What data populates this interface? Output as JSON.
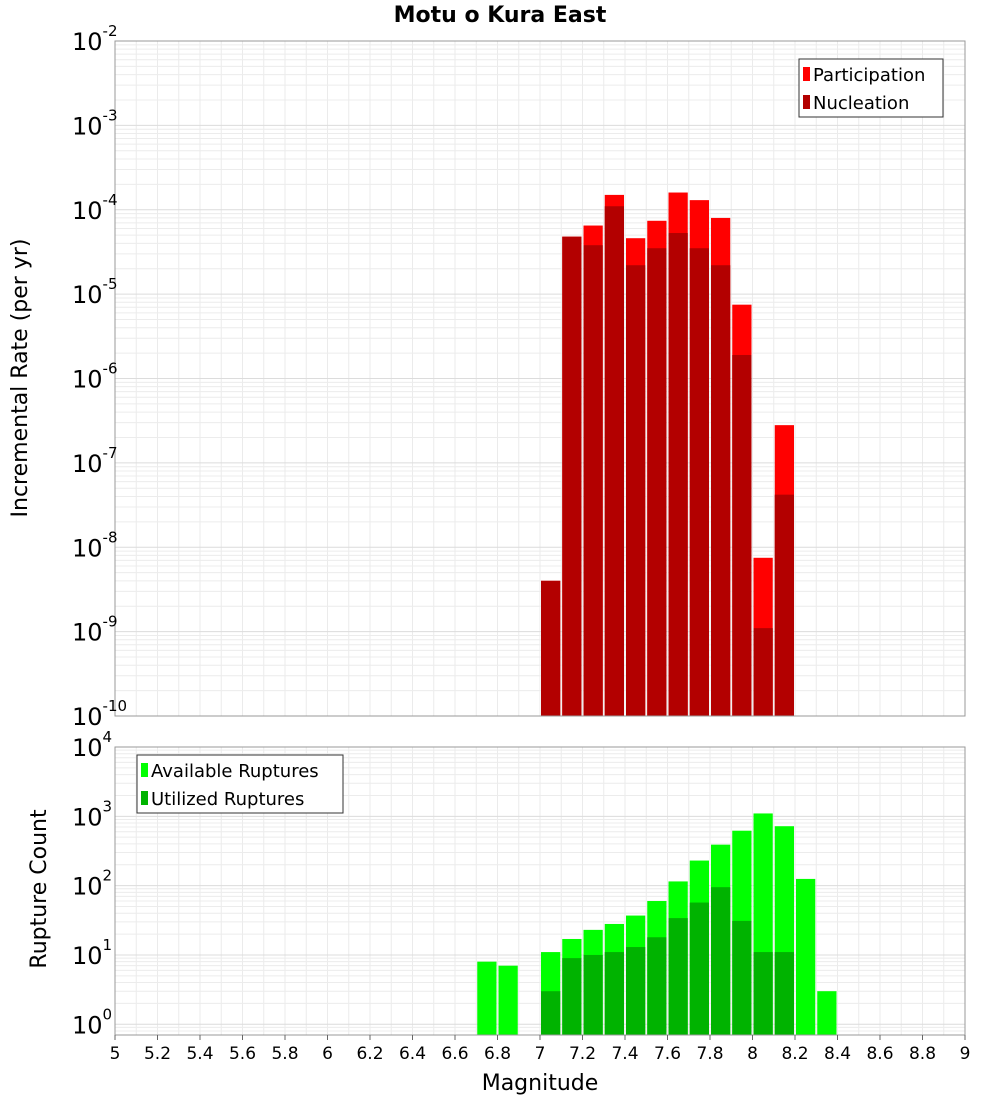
{
  "chart_data": [
    {
      "type": "bar",
      "title": "Motu o Kura East",
      "ylabel": "Incremental Rate (per yr)",
      "xlabel": "",
      "yscale": "log",
      "ylim": [
        1e-10,
        0.01
      ],
      "xlim": [
        5,
        9
      ],
      "grid": true,
      "legend_position": "top-right",
      "colors": {
        "Participation": "#ff0000",
        "Nucleation": "#b30000"
      },
      "x": [
        7.05,
        7.15,
        7.25,
        7.35,
        7.45,
        7.55,
        7.65,
        7.75,
        7.85,
        7.95,
        8.05,
        8.15
      ],
      "series": [
        {
          "name": "Participation",
          "values": [
            4e-09,
            4.8e-05,
            6.5e-05,
            0.00015,
            4.6e-05,
            7.4e-05,
            0.00016,
            0.00013,
            8e-05,
            7.5e-06,
            7.5e-09,
            2.8e-07
          ]
        },
        {
          "name": "Nucleation",
          "values": [
            4e-09,
            4.8e-05,
            3.8e-05,
            0.00011,
            2.2e-05,
            3.5e-05,
            5.3e-05,
            3.5e-05,
            2.2e-05,
            1.9e-06,
            1.1e-09,
            4.2e-08
          ]
        }
      ],
      "yticks": [
        {
          "base": "10",
          "exp": "-2"
        },
        {
          "base": "10",
          "exp": "-3"
        },
        {
          "base": "10",
          "exp": "-4"
        },
        {
          "base": "10",
          "exp": "-5"
        },
        {
          "base": "10",
          "exp": "-6"
        },
        {
          "base": "10",
          "exp": "-7"
        },
        {
          "base": "10",
          "exp": "-8"
        },
        {
          "base": "10",
          "exp": "-9"
        },
        {
          "base": "10",
          "exp": "-10"
        }
      ]
    },
    {
      "type": "bar",
      "title": "",
      "ylabel": "Rupture Count",
      "xlabel": "Magnitude",
      "yscale": "log",
      "ylim": [
        0.7,
        10000
      ],
      "xlim": [
        5,
        9
      ],
      "grid": true,
      "legend_position": "top-left",
      "colors": {
        "Available Ruptures": "#00ff00",
        "Utilized Ruptures": "#00b300"
      },
      "x": [
        6.75,
        6.85,
        7.05,
        7.15,
        7.25,
        7.35,
        7.45,
        7.55,
        7.65,
        7.75,
        7.85,
        7.95,
        8.05,
        8.15,
        8.25,
        8.35
      ],
      "series": [
        {
          "name": "Available Ruptures",
          "values": [
            8,
            7,
            11,
            17,
            23,
            28,
            37,
            60,
            115,
            230,
            390,
            620,
            1100,
            720,
            125,
            3
          ]
        },
        {
          "name": "Utilized Ruptures",
          "values": [
            0,
            0,
            3,
            9,
            10,
            11,
            13,
            18,
            34,
            57,
            95,
            31,
            11,
            11,
            0,
            0
          ]
        }
      ],
      "yticks": [
        {
          "base": "10",
          "exp": "4"
        },
        {
          "base": "10",
          "exp": "3"
        },
        {
          "base": "10",
          "exp": "2"
        },
        {
          "base": "10",
          "exp": "1"
        },
        {
          "base": "10",
          "exp": "0"
        }
      ],
      "xticks": [
        "5",
        "5.2",
        "5.4",
        "5.6",
        "5.8",
        "6",
        "6.2",
        "6.4",
        "6.6",
        "6.8",
        "7",
        "7.2",
        "7.4",
        "7.6",
        "7.8",
        "8",
        "8.2",
        "8.4",
        "8.6",
        "8.8",
        "9"
      ]
    }
  ]
}
